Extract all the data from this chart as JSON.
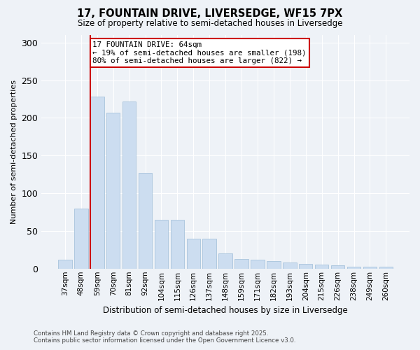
{
  "title": "17, FOUNTAIN DRIVE, LIVERSEDGE, WF15 7PX",
  "subtitle": "Size of property relative to semi-detached houses in Liversedge",
  "xlabel": "Distribution of semi-detached houses by size in Liversedge",
  "ylabel": "Number of semi-detached properties",
  "categories": [
    "37sqm",
    "48sqm",
    "59sqm",
    "70sqm",
    "81sqm",
    "92sqm",
    "104sqm",
    "115sqm",
    "126sqm",
    "137sqm",
    "148sqm",
    "159sqm",
    "171sqm",
    "182sqm",
    "193sqm",
    "204sqm",
    "215sqm",
    "226sqm",
    "238sqm",
    "249sqm",
    "260sqm"
  ],
  "values": [
    12,
    80,
    228,
    207,
    222,
    127,
    65,
    65,
    40,
    40,
    20,
    13,
    12,
    10,
    8,
    6,
    5,
    4,
    3,
    3,
    3
  ],
  "bar_color": "#ccddf0",
  "bar_edge_color": "#a8c4dc",
  "annotation_title": "17 FOUNTAIN DRIVE: 64sqm",
  "annotation_line1": "← 19% of semi-detached houses are smaller (198)",
  "annotation_line2": "80% of semi-detached houses are larger (822) →",
  "annotation_box_color": "#ffffff",
  "annotation_box_edge": "#cc0000",
  "vline_color": "#cc0000",
  "vline_x_index": 2,
  "ylim": [
    0,
    310
  ],
  "yticks": [
    0,
    50,
    100,
    150,
    200,
    250,
    300
  ],
  "background_color": "#eef2f7",
  "grid_color": "#ffffff",
  "footer1": "Contains HM Land Registry data © Crown copyright and database right 2025.",
  "footer2": "Contains public sector information licensed under the Open Government Licence v3.0."
}
